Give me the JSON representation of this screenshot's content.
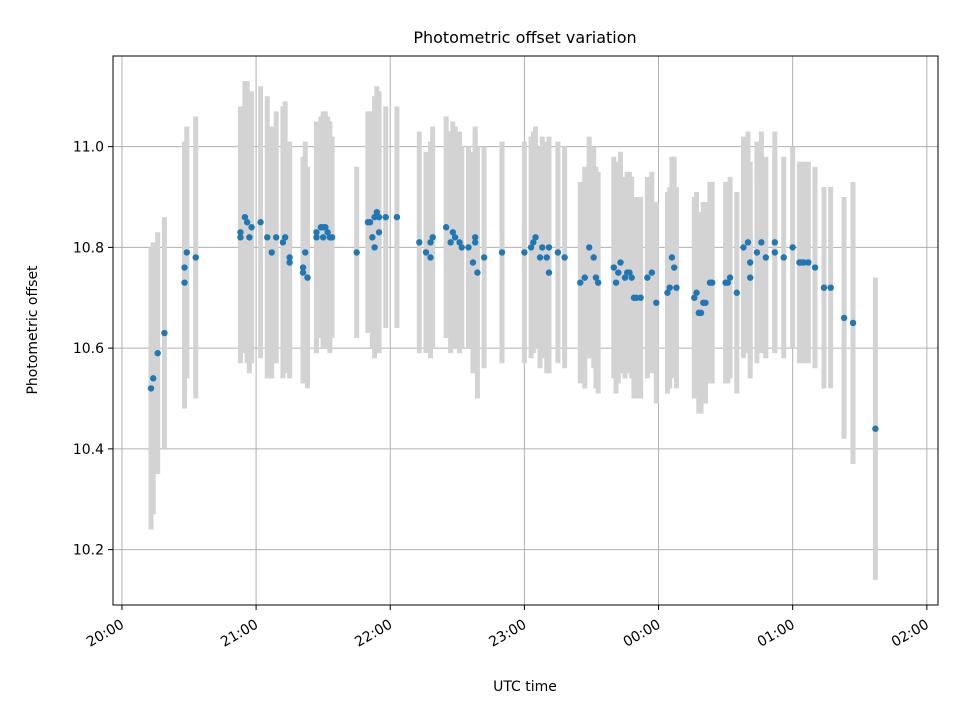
{
  "chart_data": {
    "type": "scatter",
    "title": "Photometric offset variation",
    "xlabel": "UTC time",
    "ylabel": "Photometric offset",
    "x_tick_labels": [
      "20:00",
      "21:00",
      "22:00",
      "23:00",
      "00:00",
      "01:00",
      "02:00"
    ],
    "y_tick_labels": [
      "10.2",
      "10.4",
      "10.6",
      "10.8",
      "11.0"
    ],
    "y_ticks": [
      10.2,
      10.4,
      10.6,
      10.8,
      11.0
    ],
    "ylim": [
      10.09,
      11.18
    ],
    "xlim_minutes": [
      -4,
      365
    ],
    "grid": true,
    "colors": {
      "points": "#1f77b4",
      "errorbars": "#d3d3d3",
      "grid": "#b0b0b0"
    },
    "points": [
      {
        "t": "20:13",
        "y": 10.52,
        "err": 0.28
      },
      {
        "t": "20:14",
        "y": 10.54,
        "err": 0.27
      },
      {
        "t": "20:16",
        "y": 10.59,
        "err": 0.24
      },
      {
        "t": "20:19",
        "y": 10.63,
        "err": 0.23
      },
      {
        "t": "20:28",
        "y": 10.73,
        "err": 0.25
      },
      {
        "t": "20:28",
        "y": 10.76,
        "err": 0.25
      },
      {
        "t": "20:29",
        "y": 10.79,
        "err": 0.25
      },
      {
        "t": "20:33",
        "y": 10.78,
        "err": 0.28
      },
      {
        "t": "20:53",
        "y": 10.82,
        "err": 0.25
      },
      {
        "t": "20:53",
        "y": 10.83,
        "err": 0.25
      },
      {
        "t": "20:55",
        "y": 10.86,
        "err": 0.27
      },
      {
        "t": "20:56",
        "y": 10.85,
        "err": 0.28
      },
      {
        "t": "20:57",
        "y": 10.82,
        "err": 0.27
      },
      {
        "t": "20:58",
        "y": 10.84,
        "err": 0.27
      },
      {
        "t": "21:02",
        "y": 10.85,
        "err": 0.27
      },
      {
        "t": "21:05",
        "y": 10.82,
        "err": 0.28
      },
      {
        "t": "21:07",
        "y": 10.79,
        "err": 0.25
      },
      {
        "t": "21:09",
        "y": 10.82,
        "err": 0.25
      },
      {
        "t": "21:12",
        "y": 10.81,
        "err": 0.27
      },
      {
        "t": "21:13",
        "y": 10.82,
        "err": 0.27
      },
      {
        "t": "21:15",
        "y": 10.77,
        "err": 0.23
      },
      {
        "t": "21:15",
        "y": 10.78,
        "err": 0.23
      },
      {
        "t": "21:21",
        "y": 10.75,
        "err": 0.22
      },
      {
        "t": "21:21",
        "y": 10.76,
        "err": 0.22
      },
      {
        "t": "21:22",
        "y": 10.79,
        "err": 0.22
      },
      {
        "t": "21:23",
        "y": 10.74,
        "err": 0.22
      },
      {
        "t": "21:27",
        "y": 10.82,
        "err": 0.23
      },
      {
        "t": "21:27",
        "y": 10.83,
        "err": 0.22
      },
      {
        "t": "21:29",
        "y": 10.84,
        "err": 0.22
      },
      {
        "t": "21:30",
        "y": 10.84,
        "err": 0.23
      },
      {
        "t": "21:30",
        "y": 10.82,
        "err": 0.22
      },
      {
        "t": "21:31",
        "y": 10.84,
        "err": 0.23
      },
      {
        "t": "21:32",
        "y": 10.83,
        "err": 0.23
      },
      {
        "t": "21:33",
        "y": 10.82,
        "err": 0.23
      },
      {
        "t": "21:34",
        "y": 10.82,
        "err": 0.2
      },
      {
        "t": "21:45",
        "y": 10.79,
        "err": 0.17
      },
      {
        "t": "21:50",
        "y": 10.85,
        "err": 0.22
      },
      {
        "t": "21:51",
        "y": 10.85,
        "err": 0.22
      },
      {
        "t": "21:52",
        "y": 10.82,
        "err": 0.22
      },
      {
        "t": "21:53",
        "y": 10.8,
        "err": 0.22
      },
      {
        "t": "21:53",
        "y": 10.86,
        "err": 0.24
      },
      {
        "t": "21:54",
        "y": 10.87,
        "err": 0.25
      },
      {
        "t": "21:55",
        "y": 10.83,
        "err": 0.24
      },
      {
        "t": "21:55",
        "y": 10.86,
        "err": 0.25
      },
      {
        "t": "21:58",
        "y": 10.86,
        "err": 0.22
      },
      {
        "t": "22:03",
        "y": 10.86,
        "err": 0.22
      },
      {
        "t": "22:13",
        "y": 10.81,
        "err": 0.22
      },
      {
        "t": "22:16",
        "y": 10.79,
        "err": 0.2
      },
      {
        "t": "22:18",
        "y": 10.81,
        "err": 0.2
      },
      {
        "t": "22:18",
        "y": 10.78,
        "err": 0.2
      },
      {
        "t": "22:19",
        "y": 10.82,
        "err": 0.22
      },
      {
        "t": "22:25",
        "y": 10.84,
        "err": 0.22
      },
      {
        "t": "22:27",
        "y": 10.81,
        "err": 0.22
      },
      {
        "t": "22:28",
        "y": 10.83,
        "err": 0.22
      },
      {
        "t": "22:29",
        "y": 10.82,
        "err": 0.22
      },
      {
        "t": "22:31",
        "y": 10.81,
        "err": 0.22
      },
      {
        "t": "22:32",
        "y": 10.8,
        "err": 0.2
      },
      {
        "t": "22:35",
        "y": 10.8,
        "err": 0.2
      },
      {
        "t": "22:37",
        "y": 10.77,
        "err": 0.22
      },
      {
        "t": "22:38",
        "y": 10.81,
        "err": 0.22
      },
      {
        "t": "22:38",
        "y": 10.82,
        "err": 0.22
      },
      {
        "t": "22:39",
        "y": 10.75,
        "err": 0.25
      },
      {
        "t": "22:42",
        "y": 10.78,
        "err": 0.22
      },
      {
        "t": "22:50",
        "y": 10.79,
        "err": 0.22
      },
      {
        "t": "23:00",
        "y": 10.79,
        "err": 0.22
      },
      {
        "t": "23:03",
        "y": 10.8,
        "err": 0.22
      },
      {
        "t": "23:04",
        "y": 10.81,
        "err": 0.22
      },
      {
        "t": "23:05",
        "y": 10.82,
        "err": 0.22
      },
      {
        "t": "23:07",
        "y": 10.78,
        "err": 0.22
      },
      {
        "t": "23:08",
        "y": 10.8,
        "err": 0.22
      },
      {
        "t": "23:10",
        "y": 10.78,
        "err": 0.23
      },
      {
        "t": "23:11",
        "y": 10.8,
        "err": 0.22
      },
      {
        "t": "23:11",
        "y": 10.75,
        "err": 0.2
      },
      {
        "t": "23:15",
        "y": 10.79,
        "err": 0.22
      },
      {
        "t": "23:18",
        "y": 10.78,
        "err": 0.22
      },
      {
        "t": "23:25",
        "y": 10.73,
        "err": 0.2
      },
      {
        "t": "23:27",
        "y": 10.74,
        "err": 0.22
      },
      {
        "t": "23:29",
        "y": 10.8,
        "err": 0.22
      },
      {
        "t": "23:31",
        "y": 10.78,
        "err": 0.22
      },
      {
        "t": "23:32",
        "y": 10.74,
        "err": 0.22
      },
      {
        "t": "23:33",
        "y": 10.73,
        "err": 0.22
      },
      {
        "t": "23:40",
        "y": 10.76,
        "err": 0.22
      },
      {
        "t": "23:41",
        "y": 10.73,
        "err": 0.22
      },
      {
        "t": "23:42",
        "y": 10.75,
        "err": 0.22
      },
      {
        "t": "23:43",
        "y": 10.77,
        "err": 0.22
      },
      {
        "t": "23:45",
        "y": 10.74,
        "err": 0.2
      },
      {
        "t": "23:46",
        "y": 10.75,
        "err": 0.2
      },
      {
        "t": "23:47",
        "y": 10.75,
        "err": 0.2
      },
      {
        "t": "23:48",
        "y": 10.74,
        "err": 0.2
      },
      {
        "t": "23:49",
        "y": 10.7,
        "err": 0.2
      },
      {
        "t": "23:50",
        "y": 10.7,
        "err": 0.2
      },
      {
        "t": "23:52",
        "y": 10.7,
        "err": 0.2
      },
      {
        "t": "23:55",
        "y": 10.74,
        "err": 0.2
      },
      {
        "t": "23:57",
        "y": 10.75,
        "err": 0.2
      },
      {
        "t": "23:59",
        "y": 10.69,
        "err": 0.2
      },
      {
        "t": "00:04",
        "y": 10.71,
        "err": 0.2
      },
      {
        "t": "00:05",
        "y": 10.72,
        "err": 0.2
      },
      {
        "t": "00:06",
        "y": 10.78,
        "err": 0.2
      },
      {
        "t": "00:07",
        "y": 10.76,
        "err": 0.22
      },
      {
        "t": "00:08",
        "y": 10.72,
        "err": 0.2
      },
      {
        "t": "00:16",
        "y": 10.7,
        "err": 0.2
      },
      {
        "t": "00:17",
        "y": 10.71,
        "err": 0.2
      },
      {
        "t": "00:18",
        "y": 10.67,
        "err": 0.2
      },
      {
        "t": "00:19",
        "y": 10.67,
        "err": 0.2
      },
      {
        "t": "00:20",
        "y": 10.69,
        "err": 0.2
      },
      {
        "t": "00:21",
        "y": 10.69,
        "err": 0.2
      },
      {
        "t": "00:23",
        "y": 10.73,
        "err": 0.2
      },
      {
        "t": "00:24",
        "y": 10.73,
        "err": 0.2
      },
      {
        "t": "00:30",
        "y": 10.73,
        "err": 0.2
      },
      {
        "t": "00:31",
        "y": 10.73,
        "err": 0.2
      },
      {
        "t": "00:32",
        "y": 10.74,
        "err": 0.2
      },
      {
        "t": "00:35",
        "y": 10.71,
        "err": 0.2
      },
      {
        "t": "00:38",
        "y": 10.8,
        "err": 0.22
      },
      {
        "t": "00:40",
        "y": 10.81,
        "err": 0.22
      },
      {
        "t": "00:41",
        "y": 10.74,
        "err": 0.2
      },
      {
        "t": "00:41",
        "y": 10.77,
        "err": 0.2
      },
      {
        "t": "00:44",
        "y": 10.79,
        "err": 0.22
      },
      {
        "t": "00:46",
        "y": 10.81,
        "err": 0.22
      },
      {
        "t": "00:48",
        "y": 10.78,
        "err": 0.2
      },
      {
        "t": "00:52",
        "y": 10.79,
        "err": 0.2
      },
      {
        "t": "00:52",
        "y": 10.81,
        "err": 0.22
      },
      {
        "t": "00:56",
        "y": 10.78,
        "err": 0.2
      },
      {
        "t": "01:00",
        "y": 10.8,
        "err": 0.2
      },
      {
        "t": "01:03",
        "y": 10.77,
        "err": 0.2
      },
      {
        "t": "01:04",
        "y": 10.77,
        "err": 0.2
      },
      {
        "t": "01:05",
        "y": 10.77,
        "err": 0.2
      },
      {
        "t": "01:07",
        "y": 10.77,
        "err": 0.2
      },
      {
        "t": "01:10",
        "y": 10.76,
        "err": 0.2
      },
      {
        "t": "01:14",
        "y": 10.72,
        "err": 0.2
      },
      {
        "t": "01:17",
        "y": 10.72,
        "err": 0.2
      },
      {
        "t": "01:23",
        "y": 10.66,
        "err": 0.24
      },
      {
        "t": "01:27",
        "y": 10.65,
        "err": 0.28
      },
      {
        "t": "01:37",
        "y": 10.44,
        "err": 0.3
      }
    ]
  }
}
